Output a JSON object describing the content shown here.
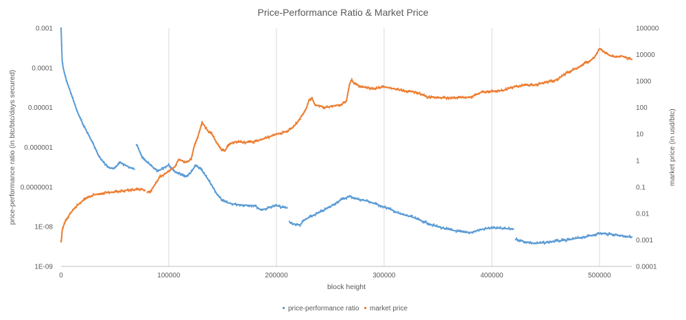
{
  "chart_data": {
    "type": "scatter",
    "title": "Price-Performance Ratio & Market Price",
    "xlabel": "block height",
    "ylabel_left": "price-performance ratio (in btc/btc/days secured)",
    "ylabel_right": "market price (in usd/btc)",
    "xlim": [
      0,
      530000
    ],
    "ylim_left": [
      1e-09,
      0.001
    ],
    "ylim_right": [
      0.0001,
      100000
    ],
    "y_scale": "log",
    "grid": "vertical",
    "legend_position": "bottom",
    "x_tick_values": [
      0,
      100000,
      200000,
      300000,
      400000,
      500000
    ],
    "x_tick_labels": [
      "0",
      "100000",
      "200000",
      "300000",
      "400000",
      "500000"
    ],
    "y_left_tick_values": [
      1e-09,
      1e-08,
      1e-07,
      1e-06,
      1e-05,
      0.0001,
      0.001
    ],
    "y_left_tick_labels": [
      "1E-09",
      "1E-08",
      "0.0000001",
      "0.000001",
      "0.00001",
      "0.0001",
      "0.001"
    ],
    "y_right_tick_values": [
      0.0001,
      0.001,
      0.01,
      0.1,
      1,
      10,
      100,
      1000,
      10000,
      100000
    ],
    "y_right_tick_labels": [
      "0.0001",
      "0.001",
      "0.01",
      "0.1",
      "1",
      "10",
      "100",
      "1000",
      "10000",
      "100000"
    ],
    "series": [
      {
        "name": "price-performance ratio",
        "axis": "left",
        "color": "#5b9bd5",
        "segments": [
          [
            [
              0,
              0.001
            ],
            [
              1000,
              0.00015
            ],
            [
              2000,
              0.0001
            ],
            [
              4000,
              6e-05
            ],
            [
              6000,
              4e-05
            ],
            [
              10000,
              2e-05
            ],
            [
              15000,
              8e-06
            ],
            [
              20000,
              4e-06
            ],
            [
              25000,
              2.2e-06
            ],
            [
              30000,
              1.2e-06
            ],
            [
              35000,
              6e-07
            ],
            [
              40000,
              4e-07
            ],
            [
              45000,
              3e-07
            ],
            [
              50000,
              3e-07
            ],
            [
              55000,
              4.2e-07
            ],
            [
              60000,
              3.5e-07
            ],
            [
              65000,
              3e-07
            ],
            [
              68000,
              2.8e-07
            ]
          ],
          [
            [
              70000,
              1.2e-06
            ],
            [
              75000,
              6e-07
            ],
            [
              80000,
              4.2e-07
            ],
            [
              85000,
              3.2e-07
            ],
            [
              90000,
              2.5e-07
            ],
            [
              95000,
              3e-07
            ],
            [
              100000,
              3.6e-07
            ],
            [
              105000,
              2.5e-07
            ],
            [
              110000,
              2.2e-07
            ],
            [
              115000,
              1.8e-07
            ],
            [
              120000,
              2.2e-07
            ],
            [
              125000,
              3.5e-07
            ],
            [
              130000,
              2.8e-07
            ],
            [
              135000,
              1.8e-07
            ],
            [
              140000,
              1.1e-07
            ],
            [
              145000,
              6.5e-08
            ],
            [
              150000,
              4.5e-08
            ],
            [
              155000,
              4e-08
            ],
            [
              160000,
              3.7e-08
            ],
            [
              170000,
              3.5e-08
            ],
            [
              180000,
              3.4e-08
            ],
            [
              185000,
              2.7e-08
            ],
            [
              190000,
              2.8e-08
            ],
            [
              195000,
              3.2e-08
            ],
            [
              200000,
              3.4e-08
            ],
            [
              205000,
              3.1e-08
            ],
            [
              210000,
              3e-08
            ]
          ],
          [
            [
              212000,
              1.3e-08
            ],
            [
              217000,
              1.15e-08
            ],
            [
              222000,
              1.1e-08
            ],
            [
              225000,
              1.4e-08
            ],
            [
              230000,
              1.7e-08
            ],
            [
              240000,
              2.3e-08
            ],
            [
              250000,
              3.2e-08
            ],
            [
              260000,
              4.8e-08
            ],
            [
              268000,
              5.8e-08
            ],
            [
              275000,
              5e-08
            ],
            [
              285000,
              4.4e-08
            ],
            [
              295000,
              3.5e-08
            ],
            [
              305000,
              2.8e-08
            ],
            [
              315000,
              2.1e-08
            ],
            [
              325000,
              1.8e-08
            ],
            [
              335000,
              1.4e-08
            ],
            [
              345000,
              1.1e-08
            ],
            [
              355000,
              9.2e-09
            ],
            [
              365000,
              8e-09
            ],
            [
              375000,
              7.2e-09
            ],
            [
              380000,
              7.1e-09
            ],
            [
              390000,
              8.5e-09
            ],
            [
              400000,
              9.5e-09
            ],
            [
              410000,
              9e-09
            ],
            [
              420000,
              8.8e-09
            ]
          ],
          [
            [
              422000,
              4.9e-09
            ],
            [
              430000,
              4.2e-09
            ],
            [
              440000,
              3.8e-09
            ],
            [
              450000,
              4e-09
            ],
            [
              460000,
              4.4e-09
            ],
            [
              470000,
              4.6e-09
            ],
            [
              480000,
              5.2e-09
            ],
            [
              490000,
              5.8e-09
            ],
            [
              500000,
              6.8e-09
            ],
            [
              510000,
              6.5e-09
            ],
            [
              520000,
              6e-09
            ],
            [
              530000,
              5.5e-09
            ]
          ]
        ]
      },
      {
        "name": "market price",
        "axis": "right",
        "color": "#ed7d31",
        "segments": [
          [
            [
              0,
              0.0008
            ],
            [
              500,
              0.0012
            ],
            [
              1000,
              0.0022
            ],
            [
              2000,
              0.0032
            ],
            [
              4000,
              0.005
            ],
            [
              7000,
              0.008
            ],
            [
              10000,
              0.012
            ],
            [
              15000,
              0.02
            ],
            [
              20000,
              0.03
            ],
            [
              25000,
              0.04
            ],
            [
              30000,
              0.05
            ],
            [
              40000,
              0.06
            ],
            [
              50000,
              0.065
            ],
            [
              60000,
              0.075
            ],
            [
              70000,
              0.08
            ],
            [
              75000,
              0.082
            ],
            [
              78000,
              0.075
            ]
          ],
          [
            [
              80000,
              0.065
            ],
            [
              83000,
              0.07
            ],
            [
              85000,
              0.09
            ],
            [
              88000,
              0.14
            ],
            [
              92000,
              0.25
            ],
            [
              95000,
              0.28
            ],
            [
              98000,
              0.35
            ],
            [
              100000,
              0.4
            ],
            [
              103000,
              0.5
            ],
            [
              106000,
              0.6
            ],
            [
              108000,
              0.9
            ],
            [
              110000,
              1.1
            ],
            [
              112000,
              1
            ],
            [
              115000,
              0.85
            ],
            [
              118000,
              0.9
            ],
            [
              121000,
              1.2
            ],
            [
              124000,
              4
            ],
            [
              127000,
              8
            ],
            [
              130000,
              20
            ],
            [
              131000,
              28
            ],
            [
              134000,
              18
            ],
            [
              137000,
              12
            ],
            [
              140000,
              10
            ],
            [
              143000,
              6
            ],
            [
              146000,
              3.8
            ],
            [
              149000,
              2.5
            ],
            [
              152000,
              2.3
            ],
            [
              155000,
              3.5
            ],
            [
              158000,
              4.5
            ],
            [
              162000,
              5.2
            ],
            [
              170000,
              4.8
            ],
            [
              180000,
              5.2
            ],
            [
              190000,
              7
            ],
            [
              200000,
              10
            ],
            [
              205000,
              11
            ],
            [
              210000,
              13
            ],
            [
              215000,
              17
            ],
            [
              220000,
              30
            ],
            [
              225000,
              60
            ],
            [
              228000,
              100
            ],
            [
              230000,
              180
            ],
            [
              233000,
              230
            ],
            [
              236000,
              120
            ],
            [
              240000,
              120
            ],
            [
              245000,
              100
            ],
            [
              250000,
              110
            ],
            [
              255000,
              120
            ],
            [
              260000,
              130
            ],
            [
              265000,
              180
            ],
            [
              268000,
              800
            ],
            [
              270000,
              1100
            ],
            [
              272000,
              800
            ],
            [
              280000,
              600
            ],
            [
              290000,
              500
            ],
            [
              300000,
              620
            ],
            [
              310000,
              500
            ],
            [
              320000,
              420
            ],
            [
              330000,
              380
            ],
            [
              340000,
              250
            ],
            [
              350000,
              240
            ],
            [
              360000,
              230
            ],
            [
              370000,
              240
            ],
            [
              380000,
              250
            ],
            [
              385000,
              300
            ],
            [
              390000,
              380
            ],
            [
              400000,
              420
            ],
            [
              410000,
              440
            ],
            [
              420000,
              600
            ],
            [
              430000,
              700
            ],
            [
              440000,
              720
            ],
            [
              450000,
              900
            ],
            [
              460000,
              1100
            ],
            [
              470000,
              2100
            ],
            [
              475000,
              2600
            ],
            [
              480000,
              3200
            ],
            [
              485000,
              4500
            ],
            [
              490000,
              5500
            ],
            [
              495000,
              7500
            ],
            [
              500000,
              17000
            ],
            [
              505000,
              12000
            ],
            [
              510000,
              9000
            ],
            [
              515000,
              8000
            ],
            [
              520000,
              9000
            ],
            [
              525000,
              7500
            ],
            [
              530000,
              6600
            ]
          ]
        ]
      }
    ]
  }
}
